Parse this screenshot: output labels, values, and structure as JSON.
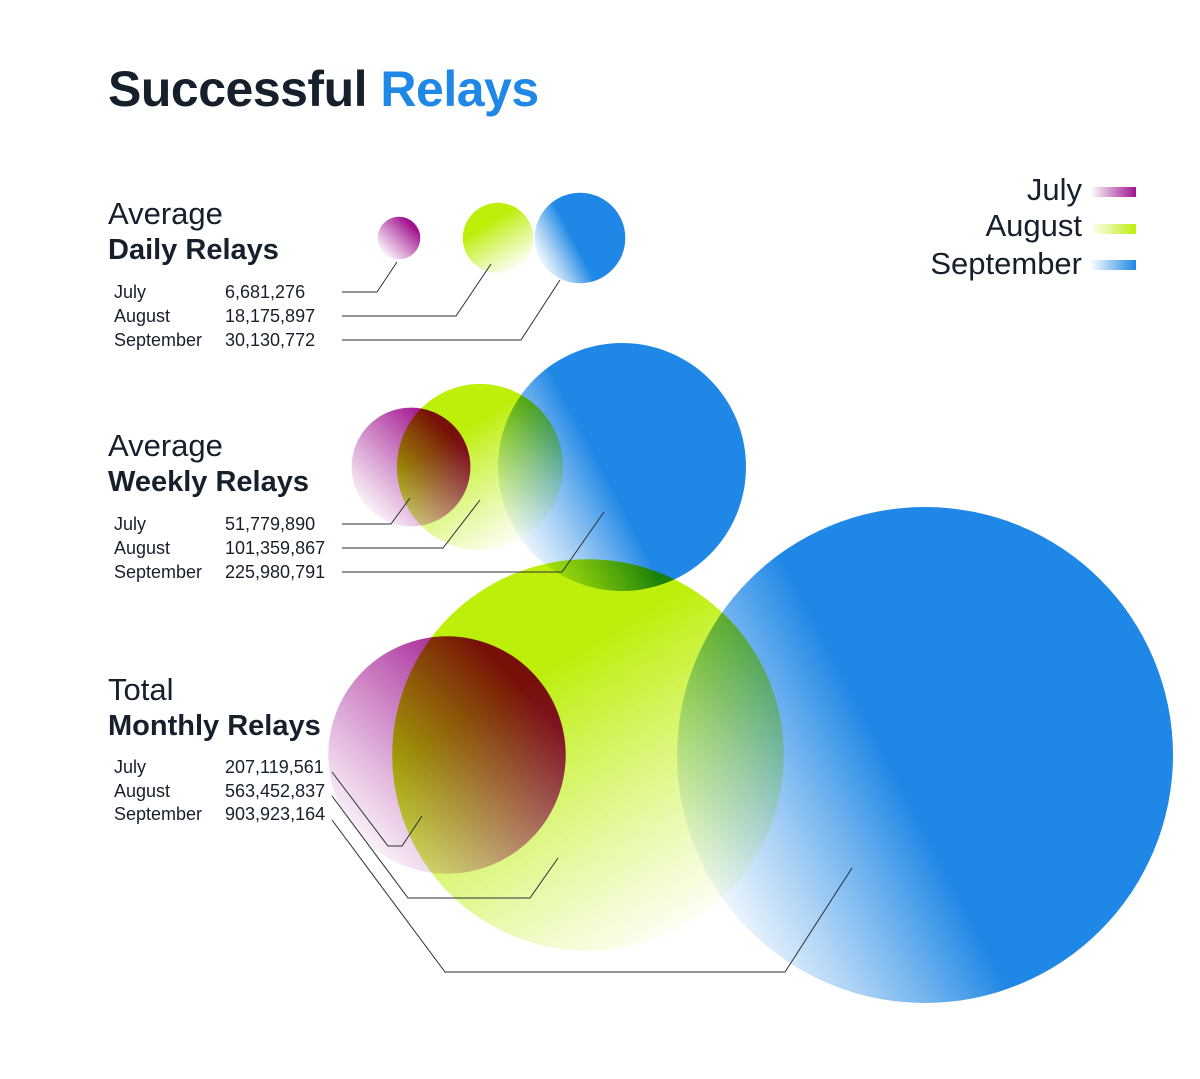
{
  "title": {
    "main": "Successful",
    "accent": "Relays"
  },
  "legend": [
    {
      "label": "July",
      "color": "#a0128f"
    },
    {
      "label": "August",
      "color": "#bdef0b"
    },
    {
      "label": "September",
      "color": "#1f87e5"
    }
  ],
  "chart_data": {
    "type": "bubble",
    "series": [
      "July",
      "August",
      "September"
    ],
    "colors": {
      "July": "#a0128f",
      "August": "#bdef0b",
      "September": "#1f87e5"
    },
    "groups": [
      {
        "label_light": "Average",
        "label_bold": "Daily Relays",
        "rows": [
          {
            "month": "July",
            "value": "6,681,276",
            "number": 6681276
          },
          {
            "month": "August",
            "value": "18,175,897",
            "number": 18175897
          },
          {
            "month": "September",
            "value": "30,130,772",
            "number": 30130772
          }
        ]
      },
      {
        "label_light": "Average",
        "label_bold": "Weekly Relays",
        "rows": [
          {
            "month": "July",
            "value": "51,779,890",
            "number": 51779890
          },
          {
            "month": "August",
            "value": "101,359,867",
            "number": 101359867
          },
          {
            "month": "September",
            "value": "225,980,791",
            "number": 225980791
          }
        ]
      },
      {
        "label_light": "Total",
        "label_bold": "Monthly Relays",
        "rows": [
          {
            "month": "July",
            "value": "207,119,561",
            "number": 207119561
          },
          {
            "month": "August",
            "value": "563,452,837",
            "number": 563452837
          },
          {
            "month": "September",
            "value": "903,923,164",
            "number": 903923164
          }
        ]
      }
    ]
  }
}
